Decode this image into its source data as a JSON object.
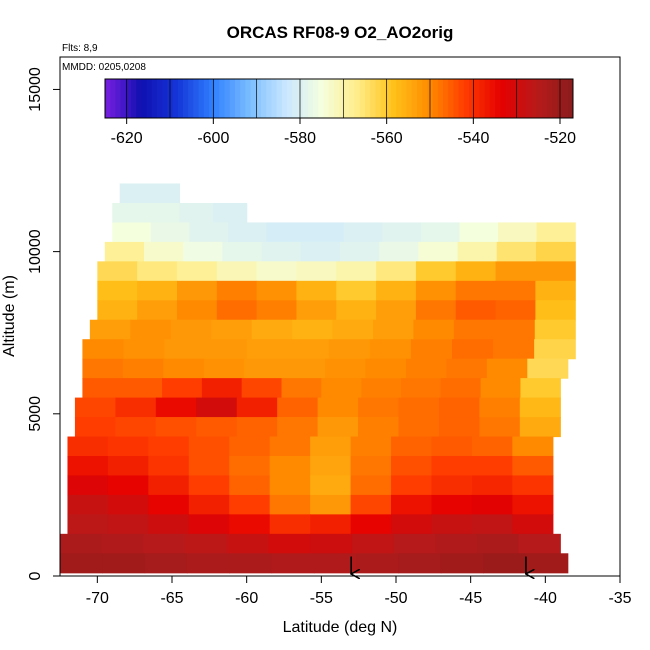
{
  "chart_data": {
    "type": "heatmap",
    "title": "ORCAS RF08-9 O2_AO2orig",
    "xlabel": "Latitude (deg N)",
    "ylabel": "Altitude (m)",
    "xlim": [
      -72.5,
      -35
    ],
    "ylim": [
      0,
      16000
    ],
    "x_ticks": [
      -70,
      -65,
      -60,
      -55,
      -50,
      -45,
      -40,
      -35
    ],
    "y_ticks": [
      0,
      5000,
      10000,
      15000
    ],
    "notes": [
      "Flts: 8,9",
      "MMDD: 0205,0208"
    ],
    "colorbar": {
      "range": [
        -625,
        -517
      ],
      "ticks": [
        -620,
        -600,
        -580,
        -560,
        -540,
        -520
      ],
      "colors": [
        "#7a1fe0",
        "#1010b0",
        "#1535d8",
        "#2f7fff",
        "#79bdff",
        "#c8e6ff",
        "#f4ffe0",
        "#ffed8a",
        "#ffc21a",
        "#ff8c00",
        "#ff3c00",
        "#e60000",
        "#b81a1a",
        "#8b1c1c"
      ]
    },
    "arrows_x": [
      -53,
      -41.3
    ],
    "field_rows": [
      {
        "alt": 11800,
        "lat_start": -68.5,
        "lat_end": -64.5,
        "values": [
          -580
        ]
      },
      {
        "alt": 11200,
        "lat_start": -69.0,
        "lat_end": -60.0,
        "values": [
          -578,
          -578,
          -579,
          -580
        ]
      },
      {
        "alt": 10600,
        "lat_start": -69.0,
        "lat_end": -38.0,
        "values": [
          -575,
          -577,
          -579,
          -580,
          -581,
          -581,
          -580,
          -579,
          -578,
          -575,
          -572,
          -568
        ]
      },
      {
        "alt": 10000,
        "lat_start": -69.5,
        "lat_end": -38.0,
        "values": [
          -568,
          -573,
          -576,
          -578,
          -579,
          -580,
          -579,
          -577,
          -574,
          -570,
          -565,
          -562
        ]
      },
      {
        "alt": 9400,
        "lat_start": -70.0,
        "lat_end": -38.0,
        "values": [
          -563,
          -566,
          -568,
          -571,
          -573,
          -572,
          -570,
          -566,
          -560,
          -556,
          -552,
          -552
        ]
      },
      {
        "alt": 8800,
        "lat_start": -70.0,
        "lat_end": -38.0,
        "values": [
          -558,
          -556,
          -552,
          -549,
          -551,
          -556,
          -560,
          -556,
          -551,
          -548,
          -548,
          -556
        ]
      },
      {
        "alt": 8200,
        "lat_start": -70.0,
        "lat_end": -38.0,
        "values": [
          -556,
          -553,
          -550,
          -547,
          -549,
          -553,
          -556,
          -553,
          -548,
          -545,
          -546,
          -558
        ]
      },
      {
        "alt": 7600,
        "lat_start": -70.5,
        "lat_end": -38.0,
        "values": [
          -553,
          -551,
          -552,
          -553,
          -555,
          -556,
          -555,
          -553,
          -550,
          -548,
          -548,
          -560
        ]
      },
      {
        "alt": 7000,
        "lat_start": -71.0,
        "lat_end": -38.0,
        "values": [
          -550,
          -551,
          -552,
          -552,
          -553,
          -553,
          -552,
          -551,
          -549,
          -547,
          -548,
          -562
        ]
      },
      {
        "alt": 6400,
        "lat_start": -71.0,
        "lat_end": -38.5,
        "values": [
          -548,
          -549,
          -550,
          -551,
          -552,
          -552,
          -551,
          -550,
          -549,
          -548,
          -550,
          -563
        ]
      },
      {
        "alt": 5800,
        "lat_start": -71.0,
        "lat_end": -39.0,
        "values": [
          -545,
          -545,
          -542,
          -538,
          -543,
          -548,
          -550,
          -549,
          -548,
          -547,
          -550,
          -560
        ]
      },
      {
        "alt": 5200,
        "lat_start": -71.5,
        "lat_end": -39.0,
        "values": [
          -543,
          -540,
          -535,
          -530,
          -538,
          -546,
          -550,
          -548,
          -547,
          -546,
          -549,
          -557
        ]
      },
      {
        "alt": 4600,
        "lat_start": -71.5,
        "lat_end": -39.0,
        "values": [
          -542,
          -543,
          -544,
          -545,
          -546,
          -548,
          -552,
          -549,
          -547,
          -546,
          -548,
          -555
        ]
      },
      {
        "alt": 4000,
        "lat_start": -72.0,
        "lat_end": -39.5,
        "values": [
          -540,
          -541,
          -542,
          -544,
          -546,
          -548,
          -553,
          -549,
          -546,
          -545,
          -546,
          -550
        ]
      },
      {
        "alt": 3400,
        "lat_start": -72.0,
        "lat_end": -39.5,
        "values": [
          -536,
          -538,
          -541,
          -544,
          -547,
          -550,
          -554,
          -548,
          -544,
          -542,
          -542,
          -545
        ]
      },
      {
        "alt": 2800,
        "lat_start": -72.0,
        "lat_end": -39.5,
        "values": [
          -532,
          -534,
          -538,
          -542,
          -546,
          -550,
          -555,
          -547,
          -542,
          -540,
          -539,
          -541
        ]
      },
      {
        "alt": 2200,
        "lat_start": -72.0,
        "lat_end": -39.5,
        "values": [
          -528,
          -530,
          -534,
          -538,
          -542,
          -548,
          -552,
          -543,
          -536,
          -534,
          -533,
          -536
        ]
      },
      {
        "alt": 1600,
        "lat_start": -72.0,
        "lat_end": -39.5,
        "values": [
          -526,
          -527,
          -529,
          -532,
          -535,
          -540,
          -538,
          -534,
          -530,
          -528,
          -527,
          -530
        ]
      },
      {
        "alt": 1000,
        "lat_start": -72.5,
        "lat_end": -39.0,
        "values": [
          -523,
          -524,
          -525,
          -526,
          -528,
          -530,
          -529,
          -527,
          -525,
          -524,
          -523,
          -525
        ]
      },
      {
        "alt": 400,
        "lat_start": -72.5,
        "lat_end": -38.5,
        "values": [
          -521,
          -521,
          -522,
          -523,
          -523,
          -524,
          -524,
          -523,
          -522,
          -521,
          -520,
          -521
        ]
      }
    ]
  }
}
